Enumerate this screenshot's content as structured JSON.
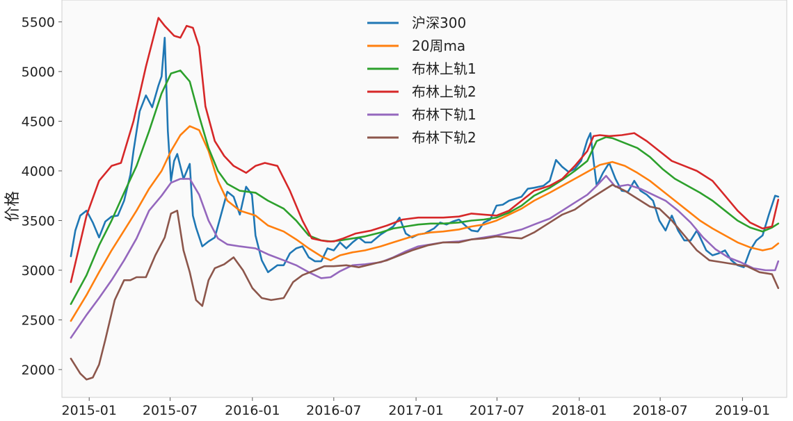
{
  "chart_data": {
    "type": "line",
    "title": "",
    "xlabel": "",
    "ylabel": "价格",
    "ylim": [
      1720,
      5720
    ],
    "xlim": [
      "2014-11-01",
      "2019-04-10"
    ],
    "grid": false,
    "legend_position": "top-center",
    "x_ticks": [
      "2015-01",
      "2015-07",
      "2016-01",
      "2016-07",
      "2017-01",
      "2017-07",
      "2018-01",
      "2018-07",
      "2019-01"
    ],
    "y_ticks": [
      2000,
      2500,
      3000,
      3500,
      4000,
      4500,
      5000,
      5500
    ],
    "colors": [
      "#1f77b4",
      "#ff7f0e",
      "#2ca02c",
      "#d62728",
      "#9467bd",
      "#8c564b"
    ],
    "series": [
      {
        "name": "沪深300",
        "x": [
          "2014-11-21",
          "2014-12-01",
          "2014-12-12",
          "2014-12-26",
          "2015-01-09",
          "2015-01-23",
          "2015-02-06",
          "2015-02-20",
          "2015-03-06",
          "2015-03-20",
          "2015-04-03",
          "2015-04-10",
          "2015-04-24",
          "2015-05-08",
          "2015-05-22",
          "2015-06-05",
          "2015-06-12",
          "2015-06-19",
          "2015-06-26",
          "2015-07-03",
          "2015-07-10",
          "2015-07-17",
          "2015-07-31",
          "2015-08-14",
          "2015-08-21",
          "2015-08-28",
          "2015-09-11",
          "2015-09-25",
          "2015-10-09",
          "2015-10-23",
          "2015-11-06",
          "2015-11-20",
          "2015-12-04",
          "2015-12-18",
          "2015-12-31",
          "2016-01-08",
          "2016-01-22",
          "2016-02-05",
          "2016-02-26",
          "2016-03-11",
          "2016-03-25",
          "2016-04-08",
          "2016-04-22",
          "2016-05-06",
          "2016-05-20",
          "2016-06-03",
          "2016-06-17",
          "2016-07-01",
          "2016-07-15",
          "2016-07-29",
          "2016-08-12",
          "2016-08-26",
          "2016-09-09",
          "2016-09-23",
          "2016-10-14",
          "2016-10-28",
          "2016-11-11",
          "2016-11-25",
          "2016-12-09",
          "2016-12-23",
          "2017-01-06",
          "2017-01-20",
          "2017-02-10",
          "2017-02-24",
          "2017-03-10",
          "2017-03-24",
          "2017-04-07",
          "2017-04-21",
          "2017-05-05",
          "2017-05-19",
          "2017-06-02",
          "2017-06-16",
          "2017-06-30",
          "2017-07-14",
          "2017-07-28",
          "2017-08-11",
          "2017-08-25",
          "2017-09-08",
          "2017-09-22",
          "2017-10-13",
          "2017-10-27",
          "2017-11-10",
          "2017-11-24",
          "2017-12-08",
          "2017-12-22",
          "2018-01-05",
          "2018-01-19",
          "2018-01-26",
          "2018-02-02",
          "2018-02-09",
          "2018-02-23",
          "2018-03-09",
          "2018-03-23",
          "2018-04-06",
          "2018-04-20",
          "2018-05-04",
          "2018-05-18",
          "2018-06-01",
          "2018-06-15",
          "2018-06-29",
          "2018-07-13",
          "2018-07-27",
          "2018-08-10",
          "2018-08-24",
          "2018-09-07",
          "2018-09-21",
          "2018-10-12",
          "2018-10-26",
          "2018-11-09",
          "2018-11-23",
          "2018-12-07",
          "2018-12-21",
          "2019-01-04",
          "2019-01-18",
          "2019-02-01",
          "2019-02-15",
          "2019-03-01",
          "2019-03-15",
          "2019-03-22"
        ],
        "values": [
          3140,
          3400,
          3550,
          3600,
          3480,
          3330,
          3490,
          3540,
          3550,
          3700,
          3960,
          4200,
          4600,
          4760,
          4640,
          4860,
          4950,
          5340,
          4400,
          3900,
          4100,
          4170,
          3920,
          4070,
          3550,
          3430,
          3240,
          3290,
          3330,
          3560,
          3790,
          3740,
          3560,
          3840,
          3760,
          3350,
          3100,
          2980,
          3050,
          3050,
          3170,
          3220,
          3240,
          3130,
          3090,
          3090,
          3220,
          3200,
          3280,
          3220,
          3280,
          3330,
          3280,
          3280,
          3360,
          3400,
          3440,
          3530,
          3370,
          3330,
          3360,
          3370,
          3420,
          3480,
          3460,
          3490,
          3510,
          3450,
          3400,
          3390,
          3480,
          3510,
          3650,
          3660,
          3700,
          3720,
          3740,
          3820,
          3830,
          3850,
          3900,
          4110,
          4040,
          3990,
          4020,
          4100,
          4310,
          4380,
          4100,
          3850,
          3980,
          4080,
          3920,
          3800,
          3790,
          3900,
          3800,
          3760,
          3700,
          3500,
          3400,
          3550,
          3400,
          3300,
          3300,
          3400,
          3200,
          3150,
          3170,
          3200,
          3100,
          3050,
          3030,
          3200,
          3300,
          3350,
          3560,
          3750,
          3740
        ]
      },
      {
        "name": "20周ma",
        "x": [
          "2014-11-21",
          "2014-12-26",
          "2015-01-23",
          "2015-02-20",
          "2015-03-20",
          "2015-04-17",
          "2015-05-15",
          "2015-06-12",
          "2015-07-03",
          "2015-07-24",
          "2015-08-14",
          "2015-09-04",
          "2015-09-25",
          "2015-10-16",
          "2015-11-06",
          "2015-12-04",
          "2016-01-08",
          "2016-02-05",
          "2016-03-11",
          "2016-04-08",
          "2016-05-06",
          "2016-06-03",
          "2016-06-24",
          "2016-07-15",
          "2016-08-12",
          "2016-09-09",
          "2016-10-14",
          "2016-11-11",
          "2016-12-09",
          "2017-01-06",
          "2017-02-03",
          "2017-03-03",
          "2017-04-07",
          "2017-05-05",
          "2017-06-02",
          "2017-06-30",
          "2017-07-28",
          "2017-08-25",
          "2017-09-22",
          "2017-10-27",
          "2017-11-24",
          "2017-12-22",
          "2018-01-19",
          "2018-02-16",
          "2018-03-16",
          "2018-04-13",
          "2018-05-11",
          "2018-06-08",
          "2018-07-06",
          "2018-08-03",
          "2018-08-31",
          "2018-09-28",
          "2018-10-26",
          "2018-11-23",
          "2018-12-21",
          "2019-01-18",
          "2019-02-15",
          "2019-03-08",
          "2019-03-22"
        ],
        "values": [
          2490,
          2750,
          2980,
          3200,
          3400,
          3600,
          3820,
          4000,
          4200,
          4360,
          4450,
          4410,
          4200,
          3900,
          3700,
          3600,
          3550,
          3450,
          3390,
          3310,
          3220,
          3140,
          3100,
          3150,
          3180,
          3200,
          3240,
          3280,
          3320,
          3360,
          3380,
          3390,
          3410,
          3440,
          3460,
          3500,
          3560,
          3620,
          3700,
          3780,
          3850,
          3920,
          3990,
          4060,
          4090,
          4050,
          3980,
          3900,
          3800,
          3700,
          3600,
          3500,
          3420,
          3350,
          3280,
          3230,
          3200,
          3220,
          3270
        ]
      },
      {
        "name": "布林上轨1",
        "x": [
          "2014-11-21",
          "2014-12-26",
          "2015-01-23",
          "2015-02-20",
          "2015-03-20",
          "2015-04-17",
          "2015-05-15",
          "2015-06-12",
          "2015-07-03",
          "2015-07-24",
          "2015-08-14",
          "2015-09-04",
          "2015-09-25",
          "2015-10-16",
          "2015-11-06",
          "2015-12-04",
          "2016-01-08",
          "2016-02-05",
          "2016-03-11",
          "2016-04-08",
          "2016-05-06",
          "2016-06-03",
          "2016-06-24",
          "2016-07-15",
          "2016-08-12",
          "2016-09-09",
          "2016-10-14",
          "2016-11-11",
          "2016-12-09",
          "2017-01-06",
          "2017-02-03",
          "2017-03-03",
          "2017-04-07",
          "2017-05-05",
          "2017-06-02",
          "2017-06-30",
          "2017-07-28",
          "2017-08-25",
          "2017-09-22",
          "2017-10-27",
          "2017-11-24",
          "2017-12-22",
          "2018-01-19",
          "2018-02-09",
          "2018-03-02",
          "2018-03-16",
          "2018-04-13",
          "2018-05-11",
          "2018-06-08",
          "2018-07-06",
          "2018-08-03",
          "2018-08-31",
          "2018-09-28",
          "2018-10-26",
          "2018-11-23",
          "2018-12-21",
          "2019-01-18",
          "2019-02-15",
          "2019-03-08",
          "2019-03-22"
        ],
        "values": [
          2660,
          2950,
          3250,
          3500,
          3780,
          4050,
          4400,
          4780,
          4980,
          5010,
          4900,
          4550,
          4230,
          4000,
          3870,
          3800,
          3780,
          3700,
          3620,
          3500,
          3350,
          3300,
          3290,
          3300,
          3320,
          3340,
          3380,
          3420,
          3440,
          3460,
          3470,
          3470,
          3480,
          3500,
          3510,
          3530,
          3580,
          3650,
          3750,
          3830,
          3910,
          4000,
          4100,
          4300,
          4340,
          4330,
          4280,
          4230,
          4140,
          4020,
          3920,
          3850,
          3780,
          3700,
          3600,
          3500,
          3430,
          3390,
          3430,
          3470
        ]
      },
      {
        "name": "布林上轨2",
        "x": [
          "2014-11-21",
          "2014-12-26",
          "2015-01-23",
          "2015-02-20",
          "2015-03-13",
          "2015-04-10",
          "2015-05-08",
          "2015-06-05",
          "2015-06-19",
          "2015-07-10",
          "2015-07-24",
          "2015-08-07",
          "2015-08-21",
          "2015-09-04",
          "2015-09-18",
          "2015-10-09",
          "2015-10-30",
          "2015-11-20",
          "2015-12-18",
          "2016-01-08",
          "2016-01-29",
          "2016-02-26",
          "2016-03-25",
          "2016-04-22",
          "2016-05-13",
          "2016-06-03",
          "2016-06-17",
          "2016-07-01",
          "2016-07-22",
          "2016-08-19",
          "2016-09-23",
          "2016-10-28",
          "2016-12-02",
          "2017-01-06",
          "2017-02-03",
          "2017-03-03",
          "2017-04-07",
          "2017-05-05",
          "2017-06-02",
          "2017-06-30",
          "2017-07-28",
          "2017-08-25",
          "2017-09-22",
          "2017-10-27",
          "2017-11-24",
          "2017-12-22",
          "2018-01-19",
          "2018-02-02",
          "2018-02-16",
          "2018-03-09",
          "2018-04-06",
          "2018-05-04",
          "2018-06-01",
          "2018-06-29",
          "2018-07-27",
          "2018-08-24",
          "2018-09-21",
          "2018-10-26",
          "2018-11-23",
          "2018-12-21",
          "2019-01-18",
          "2019-02-15",
          "2019-03-08",
          "2019-03-22"
        ],
        "values": [
          2880,
          3550,
          3900,
          4050,
          4080,
          4500,
          5050,
          5540,
          5460,
          5360,
          5340,
          5460,
          5440,
          5250,
          4650,
          4300,
          4150,
          4050,
          3980,
          4050,
          4080,
          4050,
          3800,
          3500,
          3320,
          3300,
          3290,
          3290,
          3320,
          3370,
          3400,
          3450,
          3510,
          3530,
          3530,
          3530,
          3540,
          3570,
          3560,
          3550,
          3600,
          3700,
          3800,
          3850,
          3920,
          4050,
          4200,
          4350,
          4360,
          4350,
          4360,
          4380,
          4300,
          4200,
          4100,
          4050,
          4000,
          3900,
          3750,
          3600,
          3480,
          3420,
          3440,
          3710
        ]
      },
      {
        "name": "布林下轨1",
        "x": [
          "2014-11-21",
          "2014-12-26",
          "2015-01-23",
          "2015-02-20",
          "2015-03-20",
          "2015-04-17",
          "2015-05-15",
          "2015-06-12",
          "2015-07-03",
          "2015-07-24",
          "2015-08-14",
          "2015-09-04",
          "2015-09-25",
          "2015-10-16",
          "2015-11-06",
          "2015-12-04",
          "2016-01-08",
          "2016-02-05",
          "2016-03-11",
          "2016-04-08",
          "2016-05-06",
          "2016-06-03",
          "2016-06-24",
          "2016-07-15",
          "2016-08-12",
          "2016-09-09",
          "2016-10-14",
          "2016-11-11",
          "2016-12-09",
          "2017-01-06",
          "2017-02-03",
          "2017-03-03",
          "2017-04-07",
          "2017-05-05",
          "2017-06-02",
          "2017-06-30",
          "2017-07-28",
          "2017-08-25",
          "2017-09-22",
          "2017-10-27",
          "2017-11-24",
          "2017-12-22",
          "2018-01-19",
          "2018-02-09",
          "2018-03-02",
          "2018-03-23",
          "2018-04-20",
          "2018-05-18",
          "2018-06-15",
          "2018-07-13",
          "2018-08-10",
          "2018-09-07",
          "2018-10-05",
          "2018-11-02",
          "2018-11-30",
          "2018-12-28",
          "2019-01-25",
          "2019-02-22",
          "2019-03-15",
          "2019-03-22"
        ],
        "values": [
          2320,
          2550,
          2720,
          2900,
          3100,
          3320,
          3600,
          3750,
          3880,
          3920,
          3920,
          3760,
          3500,
          3320,
          3260,
          3240,
          3220,
          3160,
          3100,
          3050,
          2980,
          2920,
          2930,
          2990,
          3050,
          3060,
          3080,
          3130,
          3190,
          3240,
          3260,
          3280,
          3290,
          3310,
          3330,
          3350,
          3380,
          3410,
          3460,
          3520,
          3600,
          3680,
          3760,
          3850,
          3950,
          3840,
          3860,
          3820,
          3760,
          3700,
          3600,
          3480,
          3330,
          3210,
          3130,
          3080,
          3020,
          3000,
          3000,
          3090
        ]
      },
      {
        "name": "布林下轨2",
        "x": [
          "2014-11-21",
          "2014-12-12",
          "2014-12-26",
          "2015-01-09",
          "2015-01-23",
          "2015-02-06",
          "2015-02-27",
          "2015-03-20",
          "2015-04-03",
          "2015-04-17",
          "2015-05-08",
          "2015-05-29",
          "2015-06-19",
          "2015-07-03",
          "2015-07-17",
          "2015-07-31",
          "2015-08-14",
          "2015-08-28",
          "2015-09-11",
          "2015-09-25",
          "2015-10-09",
          "2015-10-30",
          "2015-11-20",
          "2015-12-11",
          "2016-01-01",
          "2016-01-22",
          "2016-02-12",
          "2016-03-11",
          "2016-04-01",
          "2016-04-22",
          "2016-05-20",
          "2016-06-10",
          "2016-07-01",
          "2016-07-29",
          "2016-08-26",
          "2016-09-23",
          "2016-10-28",
          "2016-11-25",
          "2016-12-23",
          "2017-01-27",
          "2017-03-03",
          "2017-04-07",
          "2017-05-05",
          "2017-06-02",
          "2017-06-30",
          "2017-07-28",
          "2017-08-25",
          "2017-09-22",
          "2017-10-27",
          "2017-11-24",
          "2017-12-22",
          "2018-01-19",
          "2018-02-16",
          "2018-03-16",
          "2018-04-13",
          "2018-05-11",
          "2018-06-08",
          "2018-06-29",
          "2018-07-27",
          "2018-08-24",
          "2018-09-21",
          "2018-10-19",
          "2018-11-16",
          "2018-12-14",
          "2019-01-11",
          "2019-02-08",
          "2019-03-08",
          "2019-03-22"
        ],
        "values": [
          2110,
          1960,
          1900,
          1920,
          2050,
          2300,
          2700,
          2900,
          2900,
          2930,
          2930,
          3150,
          3330,
          3570,
          3600,
          3200,
          2980,
          2700,
          2640,
          2900,
          3020,
          3060,
          3130,
          3000,
          2820,
          2720,
          2700,
          2720,
          2880,
          2950,
          3000,
          3040,
          3040,
          3050,
          3030,
          3060,
          3100,
          3150,
          3200,
          3250,
          3280,
          3280,
          3310,
          3320,
          3340,
          3330,
          3320,
          3380,
          3480,
          3560,
          3610,
          3700,
          3780,
          3860,
          3800,
          3720,
          3640,
          3620,
          3500,
          3350,
          3200,
          3100,
          3080,
          3060,
          3040,
          2980,
          2960,
          2820
        ]
      }
    ]
  }
}
